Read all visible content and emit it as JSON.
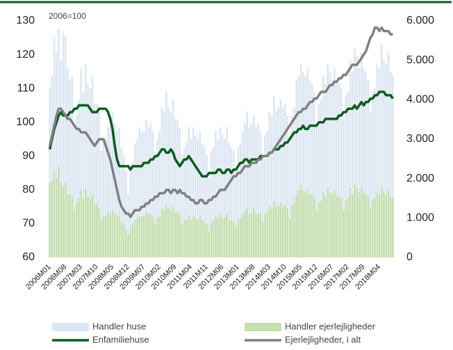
{
  "chart_data": {
    "type": "bar",
    "annotation": "2006=100",
    "categories": [
      "2006M01",
      null,
      null,
      null,
      null,
      null,
      null,
      "2006M08",
      null,
      null,
      null,
      null,
      null,
      null,
      "2007M03",
      null,
      null,
      null,
      null,
      null,
      null,
      "2007M10",
      null,
      null,
      null,
      null,
      null,
      null,
      "2008M05",
      null,
      null,
      null,
      null,
      null,
      null,
      "2008M12",
      null,
      null,
      null,
      null,
      null,
      null,
      "2009M07",
      null,
      null,
      null,
      null,
      null,
      null,
      "2010M02",
      null,
      null,
      null,
      null,
      null,
      null,
      "2010M09",
      null,
      null,
      null,
      null,
      null,
      null,
      "2011M04",
      null,
      null,
      null,
      null,
      null,
      null,
      "2011M11",
      null,
      null,
      null,
      null,
      null,
      null,
      "2012M06",
      null,
      null,
      null,
      null,
      null,
      null,
      "2013M01",
      null,
      null,
      null,
      null,
      null,
      null,
      "2013M08",
      null,
      null,
      null,
      null,
      null,
      null,
      "2014M03",
      null,
      null,
      null,
      null,
      null,
      null,
      "2014M10",
      null,
      null,
      null,
      null,
      null,
      null,
      "2015M05",
      null,
      null,
      null,
      null,
      null,
      null,
      "2015M12",
      null,
      null,
      null,
      null,
      null,
      null,
      "2016M07",
      null,
      null,
      null,
      null,
      null,
      null,
      "2017M02",
      null,
      null,
      null,
      null,
      null,
      null,
      "2017M09",
      null,
      null,
      null,
      null,
      null,
      null,
      "2018M04",
      null,
      null,
      null,
      null,
      null,
      null
    ],
    "series": [
      {
        "name": "Handler huse",
        "type": "bar",
        "axis": "y2",
        "color": "#dce6f2",
        "values": [
          4300,
          4600,
          5600,
          5200,
          5800,
          5000,
          5700,
          5600,
          4800,
          4500,
          4600,
          3400,
          3600,
          4000,
          4800,
          4200,
          4900,
          4400,
          4300,
          4600,
          3900,
          3900,
          3700,
          2700,
          3000,
          3000,
          3300,
          3400,
          3700,
          3400,
          3200,
          3300,
          2800,
          2600,
          2200,
          1600,
          2200,
          2400,
          2900,
          3000,
          3300,
          3200,
          3200,
          3500,
          3300,
          3400,
          3200,
          2600,
          3000,
          3200,
          3800,
          3700,
          4200,
          3800,
          3700,
          4000,
          3500,
          3500,
          3300,
          2600,
          2800,
          2900,
          3300,
          3000,
          3300,
          3100,
          3000,
          3200,
          2900,
          2800,
          2600,
          2000,
          2700,
          2800,
          3200,
          3000,
          3300,
          3100,
          3000,
          3300,
          2900,
          2800,
          2700,
          2200,
          2800,
          2900,
          3200,
          3400,
          3700,
          3300,
          3400,
          3600,
          3300,
          3400,
          3200,
          2600,
          3100,
          3200,
          3700,
          3600,
          4100,
          3700,
          3800,
          4000,
          3800,
          3900,
          3600,
          2900,
          3600,
          3800,
          4500,
          4600,
          4900,
          4700,
          4600,
          4800,
          4500,
          4400,
          4200,
          3400,
          3900,
          4000,
          4600,
          4400,
          4900,
          4700,
          4500,
          4800,
          4500,
          4400,
          4300,
          3500,
          4100,
          4200,
          5000,
          4700,
          5300,
          5100,
          4800,
          5200,
          4800,
          4700,
          4500,
          3700,
          4200,
          4300,
          4900,
          4800,
          5400,
          5000,
          4900,
          5200,
          4700,
          4600
        ]
      },
      {
        "name": "Handler ejerlejligheder",
        "type": "bar",
        "axis": "y2",
        "color": "#c5dfae",
        "values": [
          1900,
          1950,
          2200,
          2000,
          2300,
          1900,
          1800,
          1900,
          1600,
          1600,
          1550,
          1200,
          1400,
          1500,
          1700,
          1500,
          1750,
          1550,
          1500,
          1600,
          1350,
          1350,
          1250,
          950,
          1050,
          1050,
          1150,
          1100,
          1200,
          1100,
          1050,
          1050,
          900,
          850,
          700,
          580,
          800,
          850,
          950,
          1000,
          1050,
          1050,
          1050,
          1150,
          1100,
          1100,
          1050,
          850,
          1000,
          1050,
          1250,
          1200,
          1350,
          1250,
          1200,
          1300,
          1150,
          1150,
          1100,
          850,
          950,
          950,
          1050,
          950,
          1050,
          1000,
          950,
          1050,
          950,
          900,
          850,
          650,
          900,
          950,
          1050,
          1000,
          1100,
          1000,
          1000,
          1100,
          950,
          950,
          900,
          750,
          950,
          1000,
          1100,
          1150,
          1250,
          1100,
          1150,
          1250,
          1100,
          1150,
          1100,
          900,
          1100,
          1150,
          1300,
          1250,
          1400,
          1300,
          1300,
          1400,
          1300,
          1350,
          1250,
          1000,
          1300,
          1400,
          1600,
          1700,
          1850,
          1700,
          1650,
          1750,
          1600,
          1600,
          1500,
          1200,
          1400,
          1450,
          1650,
          1550,
          1750,
          1650,
          1600,
          1700,
          1550,
          1550,
          1500,
          1200,
          1450,
          1500,
          1750,
          1600,
          1850,
          1750,
          1650,
          1800,
          1650,
          1600,
          1550,
          1250,
          1450,
          1500,
          1650,
          1600,
          1800,
          1650,
          1600,
          1700,
          1550,
          1500
        ]
      },
      {
        "name": "Enfamiliehuse",
        "type": "line",
        "axis": "y",
        "color": "#0d5c1e",
        "values": [
          92,
          95,
          98,
          100,
          102,
          103,
          102,
          102,
          102,
          103,
          103,
          104,
          104,
          105,
          105,
          105,
          105,
          105,
          104,
          103,
          103,
          103,
          104,
          104,
          104,
          104,
          103,
          101,
          98,
          93,
          89,
          87,
          87,
          87,
          87,
          87,
          86,
          87,
          87,
          87,
          87,
          87,
          88,
          88,
          88,
          89,
          89,
          90,
          90,
          91,
          92,
          92,
          91,
          91,
          92,
          91,
          89,
          88,
          87,
          88,
          89,
          89,
          90,
          89,
          88,
          87,
          86,
          85,
          84,
          84,
          84,
          85,
          85,
          85,
          85,
          86,
          86,
          85,
          85,
          86,
          86,
          85,
          86,
          86,
          87,
          88,
          88,
          89,
          89,
          88,
          89,
          89,
          89,
          89,
          90,
          90,
          90,
          90,
          91,
          91,
          92,
          92,
          92,
          93,
          93,
          94,
          94,
          95,
          96,
          97,
          97,
          98,
          98,
          99,
          98,
          98,
          99,
          99,
          99,
          99,
          100,
          100,
          100,
          101,
          101,
          101,
          101,
          101,
          101,
          102,
          102,
          103,
          103,
          104,
          104,
          104,
          105,
          104,
          105,
          106,
          105,
          106,
          106,
          107,
          107,
          108,
          108,
          109,
          109,
          109,
          108,
          108,
          108,
          107
        ]
      },
      {
        "name": "Ejerlejligheder, i alt",
        "type": "line",
        "axis": "y",
        "color": "#808080",
        "values": [
          93,
          96,
          99,
          102,
          104,
          104,
          103,
          102,
          101,
          101,
          100,
          99,
          98,
          98,
          97,
          97,
          97,
          96,
          95,
          94,
          93,
          94,
          95,
          95,
          95,
          93,
          91,
          89,
          86,
          83,
          80,
          77,
          75,
          74,
          73,
          73,
          72,
          73,
          74,
          74,
          74,
          75,
          75,
          76,
          76,
          77,
          77,
          78,
          78,
          79,
          79,
          79,
          80,
          80,
          79,
          80,
          80,
          79,
          80,
          79,
          79,
          78,
          78,
          77,
          77,
          76,
          76,
          77,
          77,
          76,
          76,
          77,
          77,
          78,
          78,
          79,
          80,
          80,
          80,
          81,
          82,
          83,
          84,
          84,
          85,
          85,
          86,
          87,
          87,
          87,
          88,
          88,
          88,
          89,
          89,
          90,
          90,
          90,
          91,
          91,
          92,
          93,
          94,
          95,
          96,
          97,
          98,
          99,
          100,
          101,
          102,
          103,
          103,
          104,
          104,
          105,
          106,
          106,
          107,
          107,
          108,
          109,
          109,
          109,
          110,
          111,
          111,
          112,
          112,
          113,
          113,
          114,
          114,
          115,
          116,
          117,
          117,
          117,
          118,
          119,
          120,
          121,
          123,
          125,
          126,
          128,
          128,
          127,
          128,
          127,
          127,
          127,
          126,
          126
        ]
      }
    ],
    "ylim": [
      60,
      130
    ],
    "yticks": [
      60,
      70,
      80,
      90,
      100,
      110,
      120,
      130
    ],
    "y2lim": [
      0,
      6000
    ],
    "y2ticks": [
      0,
      {
        "value": 1000,
        "label": "1.000"
      },
      {
        "value": 2000,
        "label": "2.000"
      },
      {
        "value": 3000,
        "label": "3.000"
      },
      {
        "value": 4000,
        "label": "4.000"
      },
      {
        "value": 5000,
        "label": "5.000"
      },
      {
        "value": 6000,
        "label": "6.000"
      }
    ],
    "legend": "bottom"
  }
}
